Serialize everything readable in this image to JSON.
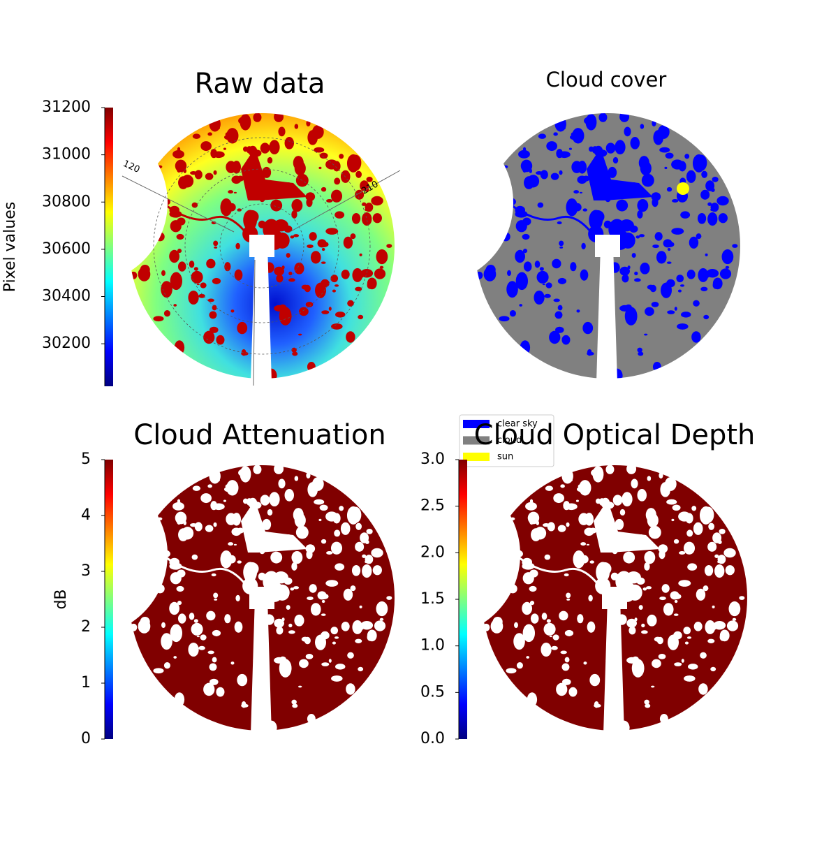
{
  "chart_data": [
    {
      "type": "image",
      "title": "Raw data",
      "colorbar_label": "Pixel values",
      "colormap": "jet",
      "clim": [
        30020,
        31200
      ],
      "cticks": [
        30200,
        30400,
        30600,
        30800,
        31000,
        31200
      ],
      "annotations": [
        "120",
        "210"
      ]
    },
    {
      "type": "image",
      "title": "Cloud cover",
      "series": [
        {
          "name": "clear sky",
          "color": "#0000ff"
        },
        {
          "name": "cloud",
          "color": "#808080"
        },
        {
          "name": "sun",
          "color": "#ffff00"
        }
      ]
    },
    {
      "type": "image",
      "title": "Cloud Attenuation",
      "colorbar_label": "dB",
      "colormap": "jet",
      "clim": [
        0,
        5
      ],
      "cticks": [
        0,
        1,
        2,
        3,
        4,
        5
      ]
    },
    {
      "type": "image",
      "title": "Cloud Optical Depth",
      "colormap": "jet",
      "clim": [
        0,
        3
      ],
      "cticks": [
        {
          "value": 0,
          "label": "0.0"
        },
        0.5,
        {
          "value": 1,
          "label": "1.0"
        },
        1.5,
        {
          "value": 2,
          "label": "2.0"
        },
        2.5,
        {
          "value": 3,
          "label": "3.0"
        }
      ]
    }
  ]
}
